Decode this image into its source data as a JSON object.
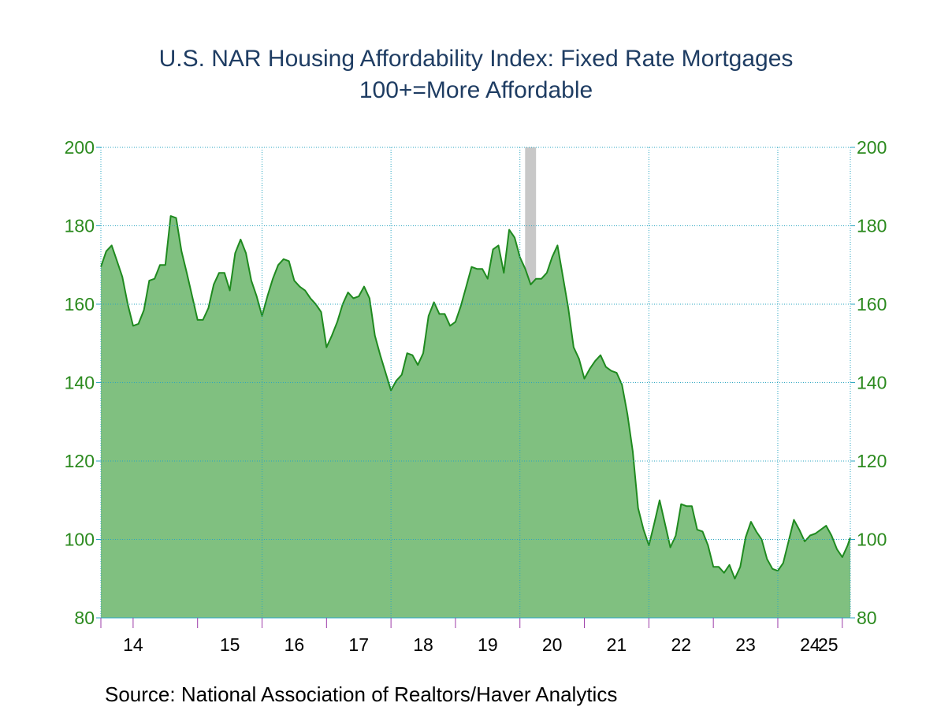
{
  "chart_data": {
    "type": "area",
    "title": "U.S. NAR Housing Affordability Index: Fixed Rate Mortgages",
    "subtitle": "100+=More Affordable",
    "source": "Source:  National Association of Realtors/Haver Analytics",
    "ylim": [
      80,
      200
    ],
    "y_ticks": [
      80,
      100,
      120,
      140,
      160,
      180,
      200
    ],
    "x_range": [
      2013.5,
      2025.125
    ],
    "x_tick_labels": [
      "14",
      "15",
      "16",
      "17",
      "18",
      "19",
      "20",
      "21",
      "22",
      "23",
      "24",
      "25"
    ],
    "grid": true,
    "axes": "y-left and y-right",
    "recession_shading": [
      [
        2020.08,
        2020.25
      ]
    ],
    "colors": {
      "fill": "#80c080",
      "line": "#1f8a1f",
      "grid": "#2aa5c0",
      "recession": "#c8c8c8",
      "ytick": "#2b8a1e",
      "title": "#1f3d63",
      "minor_tick": "#9c3ca8"
    },
    "series": [
      {
        "values": [
          [
            2013.5,
            169.5
          ],
          [
            2013.583,
            173.5
          ],
          [
            2013.667,
            175
          ],
          [
            2013.75,
            171
          ],
          [
            2013.833,
            167
          ],
          [
            2013.917,
            160
          ],
          [
            2014.0,
            154.5
          ],
          [
            2014.083,
            155
          ],
          [
            2014.167,
            158.5
          ],
          [
            2014.25,
            166
          ],
          [
            2014.333,
            166.5
          ],
          [
            2014.417,
            170
          ],
          [
            2014.5,
            170
          ],
          [
            2014.583,
            182.5
          ],
          [
            2014.667,
            182
          ],
          [
            2014.75,
            173.5
          ],
          [
            2014.833,
            168
          ],
          [
            2014.917,
            162
          ],
          [
            2015.0,
            156
          ],
          [
            2015.083,
            156
          ],
          [
            2015.167,
            159
          ],
          [
            2015.25,
            165
          ],
          [
            2015.333,
            168
          ],
          [
            2015.417,
            168
          ],
          [
            2015.5,
            163.5
          ],
          [
            2015.583,
            173
          ],
          [
            2015.667,
            176.5
          ],
          [
            2015.75,
            173
          ],
          [
            2015.833,
            166
          ],
          [
            2015.917,
            162
          ],
          [
            2016.0,
            157
          ],
          [
            2016.083,
            162
          ],
          [
            2016.167,
            166.5
          ],
          [
            2016.25,
            170
          ],
          [
            2016.333,
            171.5
          ],
          [
            2016.417,
            171
          ],
          [
            2016.5,
            166
          ],
          [
            2016.583,
            164.5
          ],
          [
            2016.667,
            163.5
          ],
          [
            2016.75,
            161.5
          ],
          [
            2016.833,
            160
          ],
          [
            2016.917,
            158
          ],
          [
            2017.0,
            149
          ],
          [
            2017.083,
            152
          ],
          [
            2017.167,
            155.5
          ],
          [
            2017.25,
            160
          ],
          [
            2017.333,
            163
          ],
          [
            2017.417,
            161.5
          ],
          [
            2017.5,
            162
          ],
          [
            2017.583,
            164.5
          ],
          [
            2017.667,
            161.5
          ],
          [
            2017.75,
            152
          ],
          [
            2017.833,
            147
          ],
          [
            2017.917,
            142.5
          ],
          [
            2018.0,
            138
          ],
          [
            2018.083,
            140.5
          ],
          [
            2018.167,
            142
          ],
          [
            2018.25,
            147.5
          ],
          [
            2018.333,
            147
          ],
          [
            2018.417,
            144.5
          ],
          [
            2018.5,
            147.5
          ],
          [
            2018.583,
            157
          ],
          [
            2018.667,
            160.5
          ],
          [
            2018.75,
            157.5
          ],
          [
            2018.833,
            157.5
          ],
          [
            2018.917,
            154.5
          ],
          [
            2019.0,
            155.5
          ],
          [
            2019.083,
            159.5
          ],
          [
            2019.167,
            164.5
          ],
          [
            2019.25,
            169.5
          ],
          [
            2019.333,
            169
          ],
          [
            2019.417,
            169
          ],
          [
            2019.5,
            166.5
          ],
          [
            2019.583,
            174
          ],
          [
            2019.667,
            175
          ],
          [
            2019.75,
            168
          ],
          [
            2019.833,
            179
          ],
          [
            2019.917,
            177
          ],
          [
            2020.0,
            172
          ],
          [
            2020.083,
            169
          ],
          [
            2020.167,
            165
          ],
          [
            2020.25,
            166.5
          ],
          [
            2020.333,
            166.5
          ],
          [
            2020.417,
            168
          ],
          [
            2020.5,
            172
          ],
          [
            2020.583,
            175
          ],
          [
            2020.667,
            167
          ],
          [
            2020.75,
            159
          ],
          [
            2020.833,
            149
          ],
          [
            2020.917,
            146
          ],
          [
            2021.0,
            141
          ],
          [
            2021.083,
            143.5
          ],
          [
            2021.167,
            145.5
          ],
          [
            2021.25,
            147
          ],
          [
            2021.333,
            144
          ],
          [
            2021.417,
            143
          ],
          [
            2021.5,
            142.5
          ],
          [
            2021.583,
            139.5
          ],
          [
            2021.667,
            132
          ],
          [
            2021.75,
            122.5
          ],
          [
            2021.833,
            108
          ],
          [
            2021.917,
            102.5
          ],
          [
            2022.0,
            98.5
          ],
          [
            2022.083,
            104
          ],
          [
            2022.167,
            110
          ],
          [
            2022.25,
            104
          ],
          [
            2022.333,
            98
          ],
          [
            2022.417,
            101
          ],
          [
            2022.5,
            109
          ],
          [
            2022.583,
            108.5
          ],
          [
            2022.667,
            108.5
          ],
          [
            2022.75,
            102.5
          ],
          [
            2022.833,
            102
          ],
          [
            2022.917,
            98.5
          ],
          [
            2023.0,
            93
          ],
          [
            2023.083,
            93
          ],
          [
            2023.167,
            91.5
          ],
          [
            2023.25,
            93.5
          ],
          [
            2023.333,
            90
          ],
          [
            2023.417,
            93
          ],
          [
            2023.5,
            100.5
          ],
          [
            2023.583,
            104.5
          ],
          [
            2023.667,
            102
          ],
          [
            2023.75,
            100
          ],
          [
            2023.833,
            95
          ],
          [
            2023.917,
            92.5
          ],
          [
            2024.0,
            92
          ],
          [
            2024.083,
            94
          ],
          [
            2024.167,
            99.5
          ],
          [
            2024.25,
            105
          ],
          [
            2024.333,
            102.5
          ],
          [
            2024.417,
            99.5
          ],
          [
            2024.5,
            101
          ],
          [
            2024.583,
            101.5
          ],
          [
            2024.667,
            102.5
          ],
          [
            2024.75,
            103.5
          ],
          [
            2024.833,
            101
          ],
          [
            2024.917,
            97.5
          ],
          [
            2025.0,
            95.5
          ],
          [
            2025.083,
            98.5
          ],
          [
            2025.125,
            100.5
          ]
        ]
      }
    ]
  }
}
